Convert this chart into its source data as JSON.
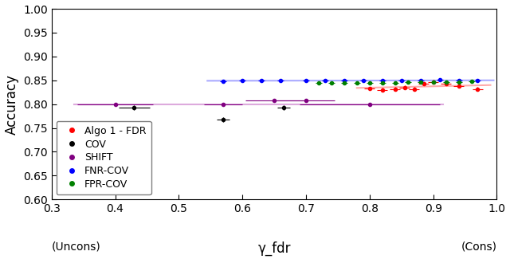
{
  "xlabel_center": "γ_fdr",
  "xlabel_left": "(Uncons)",
  "xlabel_right": "(Cons)",
  "ylabel": "Accuracy",
  "xlim": [
    0.3,
    1.0
  ],
  "ylim": [
    0.6,
    1.0
  ],
  "xticks": [
    0.3,
    0.4,
    0.5,
    0.6,
    0.7,
    0.8,
    0.9,
    1.0
  ],
  "yticks": [
    0.6,
    0.65,
    0.7,
    0.75,
    0.8,
    0.85,
    0.9,
    0.95,
    1.0
  ],
  "algo1_fdr": {
    "color": "red",
    "label": "Algo 1 - FDR",
    "x": [
      0.8,
      0.82,
      0.84,
      0.855,
      0.87,
      0.885,
      0.9,
      0.92,
      0.94,
      0.97
    ],
    "y": [
      0.833,
      0.83,
      0.832,
      0.835,
      0.832,
      0.843,
      0.847,
      0.843,
      0.838,
      0.832
    ],
    "xerr": [
      0.008,
      0.008,
      0.008,
      0.008,
      0.008,
      0.008,
      0.008,
      0.008,
      0.008,
      0.008
    ],
    "yerr": [
      0.004,
      0.004,
      0.004,
      0.004,
      0.004,
      0.004,
      0.004,
      0.004,
      0.004,
      0.004
    ],
    "trend_x": [
      0.78,
      0.99
    ],
    "trend_y": [
      0.834,
      0.84
    ],
    "trend_color": "#ffaaaa"
  },
  "cov": {
    "color": "black",
    "label": "COV",
    "x": [
      0.43,
      0.57,
      0.665
    ],
    "y": [
      0.792,
      0.767,
      0.792
    ],
    "xerr": [
      0.025,
      0.01,
      0.01
    ],
    "yerr": [
      0.005,
      0.005,
      0.005
    ]
  },
  "shift": {
    "color": "purple",
    "label": "SHIFT",
    "x": [
      0.4,
      0.57,
      0.65,
      0.7,
      0.8
    ],
    "y": [
      0.8,
      0.8,
      0.808,
      0.808,
      0.8
    ],
    "xerr": [
      0.06,
      0.03,
      0.045,
      0.045,
      0.11
    ],
    "yerr": [
      0.003,
      0.003,
      0.003,
      0.003,
      0.003
    ],
    "trend_x": [
      0.335,
      0.915
    ],
    "trend_y": [
      0.8,
      0.8
    ],
    "trend_color": "#ddaadd"
  },
  "fnr_cov": {
    "color": "blue",
    "label": "FNR-COV",
    "x": [
      0.57,
      0.6,
      0.63,
      0.66,
      0.7,
      0.73,
      0.76,
      0.79,
      0.82,
      0.85,
      0.88,
      0.91,
      0.94,
      0.97
    ],
    "y": [
      0.848,
      0.849,
      0.849,
      0.849,
      0.849,
      0.849,
      0.849,
      0.85,
      0.85,
      0.85,
      0.85,
      0.851,
      0.85,
      0.85
    ],
    "xerr": [
      0.005,
      0.005,
      0.005,
      0.005,
      0.005,
      0.005,
      0.005,
      0.005,
      0.005,
      0.005,
      0.005,
      0.005,
      0.005,
      0.005
    ],
    "yerr": [
      0.002,
      0.002,
      0.002,
      0.002,
      0.002,
      0.002,
      0.002,
      0.002,
      0.002,
      0.002,
      0.002,
      0.002,
      0.002,
      0.002
    ],
    "trend_x": [
      0.545,
      0.995
    ],
    "trend_y": [
      0.849,
      0.85
    ],
    "trend_color": "#aaaaff"
  },
  "fpr_cov": {
    "color": "green",
    "label": "FPR-COV",
    "x": [
      0.72,
      0.74,
      0.76,
      0.78,
      0.8,
      0.82,
      0.84,
      0.86,
      0.88,
      0.9,
      0.92,
      0.94,
      0.96
    ],
    "y": [
      0.845,
      0.845,
      0.844,
      0.844,
      0.844,
      0.845,
      0.845,
      0.846,
      0.846,
      0.847,
      0.847,
      0.847,
      0.848
    ],
    "xerr": [
      0.005,
      0.005,
      0.005,
      0.005,
      0.005,
      0.005,
      0.005,
      0.005,
      0.005,
      0.005,
      0.005,
      0.005,
      0.005
    ],
    "yerr": [
      0.002,
      0.002,
      0.002,
      0.002,
      0.002,
      0.002,
      0.002,
      0.002,
      0.002,
      0.002,
      0.002,
      0.002,
      0.002
    ]
  },
  "background_color": "#ffffff",
  "axes_bg_color": "#ffffff"
}
